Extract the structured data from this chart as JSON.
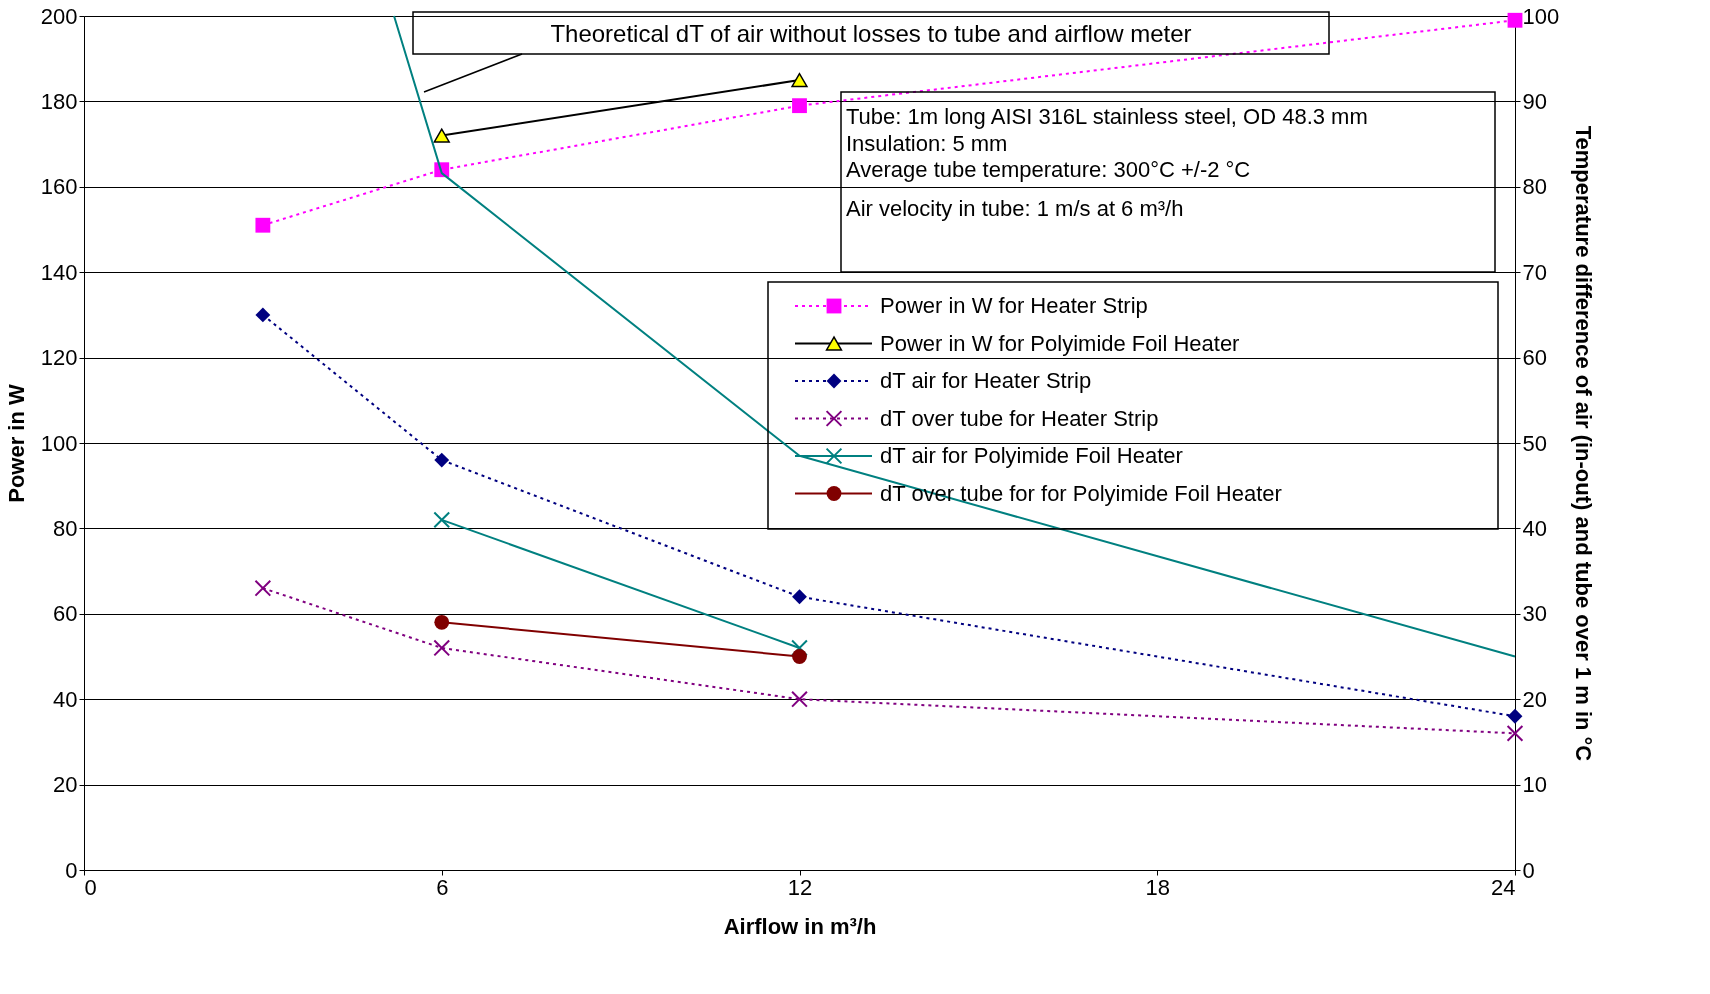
{
  "chart_data": {
    "type": "line",
    "xlabel": "Airflow in m³/h",
    "ylabel": "Power in W",
    "y2label": "Temperature difference of air (in-out) and tube over 1 m in °C",
    "xlim": [
      0,
      24
    ],
    "xticks": [
      0,
      6,
      12,
      18,
      24
    ],
    "ylim": [
      0,
      200
    ],
    "yticks": [
      0,
      20,
      40,
      60,
      80,
      100,
      120,
      140,
      160,
      180,
      200
    ],
    "y2lim": [
      0,
      100
    ],
    "y2ticks": [
      0,
      10,
      20,
      30,
      40,
      50,
      60,
      70,
      80,
      90,
      100
    ],
    "grid": "y",
    "legend": "right",
    "annotations": [
      "Theoretical dT of air without losses to tube and airflow meter",
      "Tube: 1m long AISI 316L stainless steel, OD 48.3 mm",
      "Insulation: 5 mm",
      "Average tube temperature: 300°C +/-2 °C",
      "Air velocity in tube: 1 m/s at 6 m³/h"
    ],
    "series": [
      {
        "name": "Power in W for Heater Strip",
        "color": "#ff00ff",
        "x": [
          3,
          6,
          12,
          24
        ],
        "values": [
          151,
          164,
          179,
          199
        ],
        "axis": "y",
        "marker": "square",
        "line_style": "dotted"
      },
      {
        "name": "Power in W for Polyimide Foil Heater",
        "color": "#000000",
        "x": [
          6,
          12
        ],
        "values": [
          172,
          185
        ],
        "axis": "y",
        "marker": "triangle",
        "line_style": "solid"
      },
      {
        "name": "dT air for Heater Strip",
        "color": "#000080",
        "x": [
          3,
          6,
          12,
          24
        ],
        "values": [
          65,
          48,
          32,
          18
        ],
        "axis": "y2",
        "marker": "diamond",
        "line_style": "dotted"
      },
      {
        "name": "dT over tube for Heater Strip",
        "color": "#800080",
        "x": [
          3,
          6,
          12,
          24
        ],
        "values": [
          33,
          26,
          20,
          16
        ],
        "axis": "y2",
        "marker": "cross",
        "line_style": "dotted"
      },
      {
        "name": "dT air for Polyimide Foil Heater",
        "color": "#008080",
        "x": [
          6,
          12
        ],
        "values": [
          41,
          26
        ],
        "axis": "y2",
        "marker": "cross",
        "line_style": "solid"
      },
      {
        "name": "dT over tube for for Polyimide Foil Heater",
        "color": "#800000",
        "x": [
          6,
          12
        ],
        "values": [
          29,
          25
        ],
        "axis": "y2",
        "marker": "circle",
        "line_style": "solid"
      },
      {
        "color": "#008080",
        "x": [
          5.2,
          6,
          12,
          24
        ],
        "values": [
          100,
          81.6,
          48.5,
          25
        ],
        "axis": "y2",
        "marker": "none",
        "line_style": "solid"
      }
    ]
  }
}
